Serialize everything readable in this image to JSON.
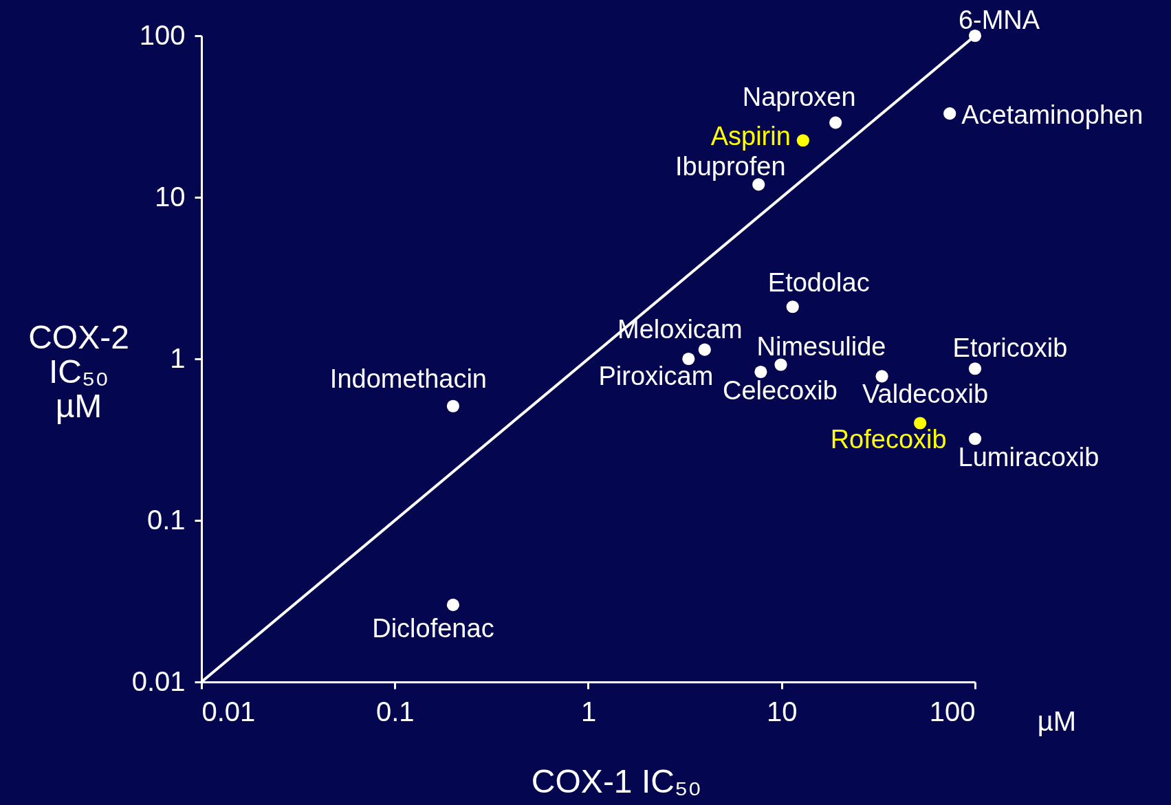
{
  "chart_data": {
    "type": "scatter",
    "xlabel": "COX-1 IC₅₀",
    "ylabel": "COX-2 IC₅₀ µM",
    "log": "xy",
    "xlim": [
      0.01,
      100
    ],
    "ylim": [
      0.01,
      100
    ],
    "xticks": [
      0.01,
      0.1,
      1,
      10,
      100
    ],
    "yticks": [
      0.01,
      0.1,
      1,
      10,
      100
    ],
    "grid": false,
    "marker": "circle",
    "series": [
      {
        "type": "line",
        "marker": "none",
        "color": "#ffffff",
        "x": [
          0.01,
          100
        ],
        "values": [
          0.01,
          100
        ]
      },
      {
        "color": "#ffffff",
        "x": [
          100,
          19,
          74,
          7.6,
          11.4,
          4,
          3.3,
          7.8,
          9.9,
          33,
          100,
          100,
          0.2,
          0.2
        ],
        "values": [
          100,
          29,
          33,
          12,
          2.1,
          1.14,
          1,
          0.83,
          0.92,
          0.78,
          0.87,
          0.32,
          0.51,
          0.03
        ]
      },
      {
        "color": "#ffff00",
        "x": [
          12.9,
          52
        ],
        "values": [
          22.5,
          0.4
        ]
      }
    ],
    "annotations": [
      {
        "text": "6-MNA",
        "x": 100,
        "y": 100
      },
      {
        "text": "Naproxen",
        "x": 19,
        "y": 29
      },
      {
        "text": "Aspirin",
        "x": 12.9,
        "y": 22.5
      },
      {
        "text": "Acetaminophen",
        "x": 74,
        "y": 33
      },
      {
        "text": "Ibuprofen",
        "x": 7.6,
        "y": 12
      },
      {
        "text": "Etodolac",
        "x": 11.4,
        "y": 2.1
      },
      {
        "text": "Meloxicam",
        "x": 4,
        "y": 1.14
      },
      {
        "text": "Piroxicam",
        "x": 3.3,
        "y": 1
      },
      {
        "text": "Celecoxib",
        "x": 7.8,
        "y": 0.83
      },
      {
        "text": "Nimesulide",
        "x": 9.9,
        "y": 0.92
      },
      {
        "text": "Valdecoxib",
        "x": 33,
        "y": 0.78
      },
      {
        "text": "Etoricoxib",
        "x": 100,
        "y": 0.87
      },
      {
        "text": "Rofecoxib",
        "x": 52,
        "y": 0.4
      },
      {
        "text": "Lumiracoxib",
        "x": 100,
        "y": 0.32
      },
      {
        "text": "Indomethacin",
        "x": 0.2,
        "y": 0.51
      },
      {
        "text": "Diclofenac",
        "x": 0.2,
        "y": 0.03
      },
      "µM"
    ]
  }
}
